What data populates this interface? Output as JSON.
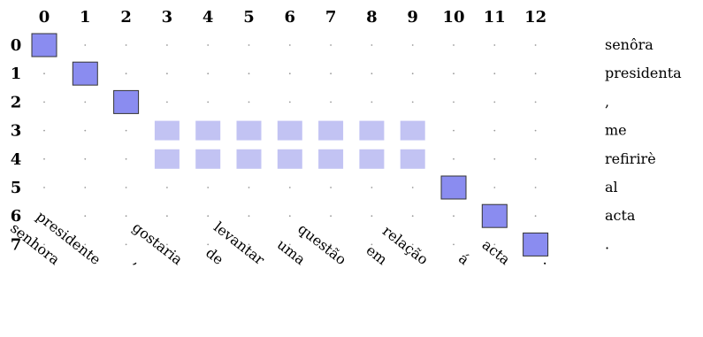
{
  "chart_data": {
    "type": "heatmap",
    "x_labels": [
      "senhora",
      "presidente",
      ",",
      "gostaria",
      "de",
      "levantar",
      "uma",
      "questão",
      "em",
      "relação",
      "á",
      "acta",
      "."
    ],
    "y_labels": [
      "senôra",
      "presidenta",
      ",",
      "me",
      "refirirè",
      "al",
      "acta",
      "."
    ],
    "col_indices": [
      "0",
      "1",
      "2",
      "3",
      "4",
      "5",
      "6",
      "7",
      "8",
      "9",
      "10",
      "11",
      "12"
    ],
    "row_indices": [
      "0",
      "1",
      "2",
      "3",
      "4",
      "5",
      "6",
      "7"
    ],
    "cells": [
      {
        "row": 0,
        "col": 0,
        "weight": 1.0
      },
      {
        "row": 1,
        "col": 1,
        "weight": 1.0
      },
      {
        "row": 2,
        "col": 2,
        "weight": 1.0
      },
      {
        "row": 3,
        "col": 3,
        "weight": 0.45
      },
      {
        "row": 3,
        "col": 4,
        "weight": 0.45
      },
      {
        "row": 3,
        "col": 5,
        "weight": 0.45
      },
      {
        "row": 3,
        "col": 6,
        "weight": 0.45
      },
      {
        "row": 3,
        "col": 7,
        "weight": 0.45
      },
      {
        "row": 3,
        "col": 8,
        "weight": 0.45
      },
      {
        "row": 3,
        "col": 9,
        "weight": 0.45
      },
      {
        "row": 4,
        "col": 3,
        "weight": 0.45
      },
      {
        "row": 4,
        "col": 4,
        "weight": 0.45
      },
      {
        "row": 4,
        "col": 5,
        "weight": 0.45
      },
      {
        "row": 4,
        "col": 6,
        "weight": 0.45
      },
      {
        "row": 4,
        "col": 7,
        "weight": 0.45
      },
      {
        "row": 4,
        "col": 8,
        "weight": 0.45
      },
      {
        "row": 4,
        "col": 9,
        "weight": 0.45
      },
      {
        "row": 5,
        "col": 10,
        "weight": 1.0
      },
      {
        "row": 6,
        "col": 11,
        "weight": 1.0
      },
      {
        "row": 7,
        "col": 12,
        "weight": 1.0
      }
    ],
    "colors": {
      "strong_fill": "#8a8cf0",
      "strong_stroke": "#333333",
      "weak_fill": "#c2c3f3",
      "dot": "#9a9a9a"
    }
  }
}
